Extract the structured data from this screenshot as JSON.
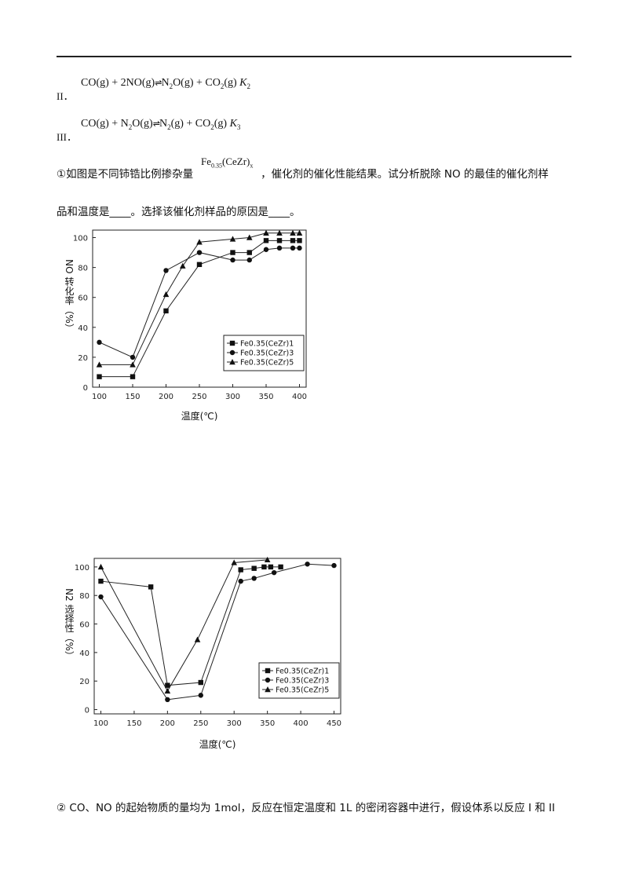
{
  "equations": [
    {
      "num": "II．",
      "left": "CO(g) + 2NO(g)",
      "arrow": "⇌",
      "right": "N",
      "sub1": "2",
      "right2": "O(g) + CO",
      "sub2": "2",
      "right3": "(g)",
      "k": "K",
      "ksub": "2"
    },
    {
      "num": "III．",
      "left": "CO(g) + N",
      "lsub": "2",
      "left2": "O(g)",
      "arrow": "⇌",
      "right": "N",
      "sub1": "2",
      "right2": "(g) + CO",
      "sub2": "2",
      "right3": "(g)",
      "k": "K",
      "ksub": "3"
    }
  ],
  "para1": {
    "prefix": "①如图是不同铈锆比例掺杂量",
    "formula": "Fe",
    "formula_sub": "0.35",
    "formula_rest": "(CeZr)",
    "formula_sub2": "x",
    "suffix": "，催化剂的催化性能结果。试分析脱除 NO 的最佳的催化剂样",
    "line2": "品和温度是____。选择该催化剂样品的原因是____。"
  },
  "para2": "② CO、NO 的起始物质的量均为 1mol，反应在恒定温度和 1L 的密闭容器中进行，假设体系以反应 I 和 II",
  "chart_data": [
    {
      "type": "line",
      "xlabel": "温度(℃)",
      "ylabel": "NO 转化率（%）",
      "xlim": [
        90,
        410
      ],
      "ylim": [
        0,
        105
      ],
      "xticks": [
        100,
        150,
        200,
        250,
        300,
        350,
        400
      ],
      "yticks": [
        0,
        20,
        40,
        60,
        80,
        100
      ],
      "legend_position": "bottom-right",
      "series": [
        {
          "name": "Fe0.35(CeZr)1",
          "marker": "square",
          "x": [
            100,
            150,
            200,
            250,
            300,
            325,
            350,
            370,
            390,
            400
          ],
          "y": [
            7,
            7,
            51,
            82,
            90,
            90,
            98,
            98,
            98,
            98
          ]
        },
        {
          "name": "Fe0.35(CeZr)3",
          "marker": "circle",
          "x": [
            100,
            150,
            200,
            250,
            300,
            325,
            350,
            370,
            390,
            400
          ],
          "y": [
            30,
            20,
            78,
            90,
            85,
            85,
            92,
            93,
            93,
            93
          ]
        },
        {
          "name": "Fe0.35(CeZr)5",
          "marker": "triangle",
          "x": [
            100,
            150,
            200,
            225,
            250,
            300,
            325,
            350,
            370,
            390,
            400
          ],
          "y": [
            15,
            15,
            62,
            81,
            97,
            99,
            100,
            103,
            103,
            103,
            103
          ]
        }
      ]
    },
    {
      "type": "line",
      "xlabel": "温度(℃)",
      "ylabel": "N2 选择性（%）",
      "xlim": [
        90,
        460
      ],
      "ylim": [
        -3,
        106
      ],
      "xticks": [
        100,
        150,
        200,
        250,
        300,
        350,
        400,
        450
      ],
      "yticks": [
        0,
        20,
        40,
        60,
        80,
        100
      ],
      "legend_position": "bottom-right",
      "series": [
        {
          "name": "Fe0.35(CeZr)1",
          "marker": "square",
          "x": [
            100,
            175,
            200,
            250,
            310,
            330,
            345,
            355,
            370
          ],
          "y": [
            90,
            86,
            17,
            19,
            98,
            99,
            100,
            100,
            100
          ]
        },
        {
          "name": "Fe0.35(CeZr)3",
          "marker": "circle",
          "x": [
            100,
            200,
            250,
            310,
            330,
            360,
            410,
            450
          ],
          "y": [
            79,
            7,
            10,
            90,
            92,
            96,
            102,
            101
          ]
        },
        {
          "name": "Fe0.35(CeZr)5",
          "marker": "triangle",
          "x": [
            100,
            200,
            245,
            300,
            350
          ],
          "y": [
            100,
            13,
            49,
            103,
            105
          ]
        }
      ]
    }
  ]
}
